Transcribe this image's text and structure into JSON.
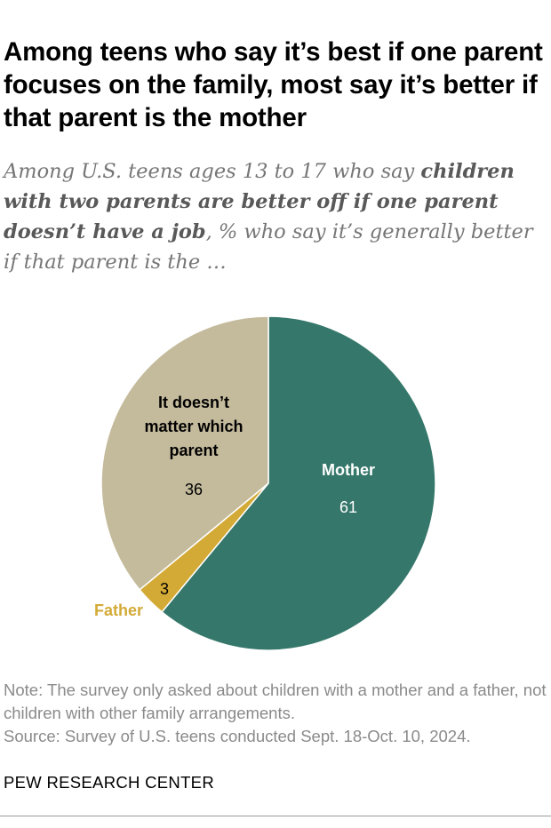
{
  "title": "Among teens who say it’s best if one parent focuses on the family, most say it’s better if that parent is the mother",
  "subtitle": {
    "intro": "Among U.S. teens ages 13 to 17 who say ",
    "emphasis": "children with two parents are better off if one parent doesn’t have a job",
    "rest": ", % who say it’s generally better if that parent is the …"
  },
  "chart_data": {
    "type": "pie",
    "slices": [
      {
        "label": "Mother",
        "value": 61,
        "color": "#35776a"
      },
      {
        "label": "Father",
        "value": 3,
        "color": "#d3aa36"
      },
      {
        "label": "It doesn’t matter which parent",
        "label_lines": [
          "It doesn’t",
          "matter which",
          "parent"
        ],
        "value": 36,
        "color": "#c4ba9c"
      }
    ]
  },
  "note": "Note: The survey only asked about children with a mother and a father, not children with other family arrangements.",
  "source": "Source: Survey of U.S. teens conducted Sept. 18-Oct. 10, 2024.",
  "credit": "PEW RESEARCH CENTER"
}
